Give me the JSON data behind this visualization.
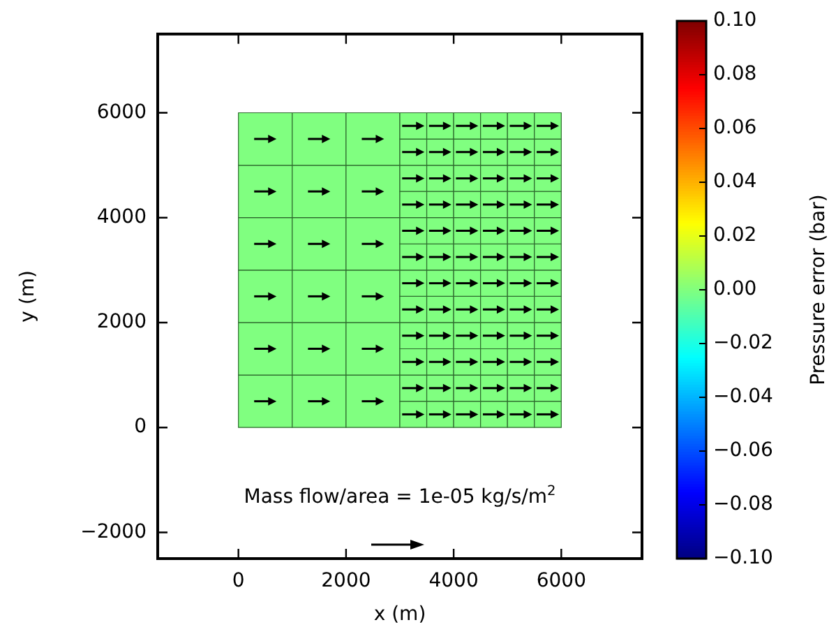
{
  "chart_data": {
    "type": "scatter",
    "xlabel": "x (m)",
    "ylabel": "y (m)",
    "clabel": "Pressure error (bar)",
    "annotations": [
      "Mass flow/area = 1e-05 kg/s/m$^{2}$"
    ],
    "x": [
      500,
      1500,
      2500,
      500,
      1500,
      2500,
      500,
      1500,
      2500,
      500,
      1500,
      2500,
      500,
      1500,
      2500,
      500,
      1500,
      2500,
      3250,
      3750,
      4250,
      4750,
      5250,
      5750,
      3250,
      3750,
      4250,
      4750,
      5250,
      5750,
      3250,
      3750,
      4250,
      4750,
      5250,
      5750,
      3250,
      3750,
      4250,
      4750,
      5250,
      5750,
      3250,
      3750,
      4250,
      4750,
      5250,
      5750,
      3250,
      3750,
      4250,
      4750,
      5250,
      5750,
      3250,
      3750,
      4250,
      4750,
      5250,
      5750,
      3250,
      3750,
      4250,
      4750,
      5250,
      5750,
      3250,
      3750,
      4250,
      4750,
      5250,
      5750,
      3250,
      3750,
      4250,
      4750,
      5250,
      5750,
      3250,
      3750,
      4250,
      4750,
      5250,
      5750,
      3250,
      3750,
      4250,
      4750,
      5250,
      5750
    ],
    "values": [
      500,
      500,
      500,
      1500,
      1500,
      1500,
      2500,
      2500,
      2500,
      3500,
      3500,
      3500,
      4500,
      4500,
      4500,
      5500,
      5500,
      5500,
      250,
      250,
      250,
      250,
      250,
      250,
      750,
      750,
      750,
      750,
      750,
      750,
      1250,
      1250,
      1250,
      1250,
      1250,
      1250,
      1750,
      1750,
      1750,
      1750,
      1750,
      1750,
      2250,
      2250,
      2250,
      2250,
      2250,
      2250,
      2750,
      2750,
      2750,
      2750,
      2750,
      2750,
      3250,
      3250,
      3250,
      3250,
      3250,
      3250,
      3750,
      3750,
      3750,
      3750,
      3750,
      3750,
      4250,
      4250,
      4250,
      4250,
      4250,
      4250,
      4750,
      4750,
      4750,
      4750,
      4750,
      4750,
      5250,
      5250,
      5250,
      5250,
      5250,
      5250,
      5750,
      5750,
      5750,
      5750,
      5750,
      5750
    ],
    "sizes": [
      1,
      1,
      1,
      1,
      1,
      1,
      1,
      1,
      1,
      1,
      1,
      1,
      1,
      1,
      1,
      1,
      1,
      1,
      0.25,
      0.25,
      0.25,
      0.25,
      0.25,
      0.25,
      0.25,
      0.25,
      0.25,
      0.25,
      0.25,
      0.25,
      0.25,
      0.25,
      0.25,
      0.25,
      0.25,
      0.25,
      0.25,
      0.25,
      0.25,
      0.25,
      0.25,
      0.25,
      0.25,
      0.25,
      0.25,
      0.25,
      0.25,
      0.25,
      0.25,
      0.25,
      0.25,
      0.25,
      0.25,
      0.25,
      0.25,
      0.25,
      0.25,
      0.25,
      0.25,
      0.25,
      0.25,
      0.25,
      0.25,
      0.25,
      0.25,
      0.25,
      0.25,
      0.25,
      0.25,
      0.25,
      0.25,
      0.25,
      0.25,
      0.25,
      0.25,
      0.25,
      0.25,
      0.25,
      0.25,
      0.25,
      0.25,
      0.25,
      0.25,
      0.25,
      0.25,
      0.25,
      0.25,
      0.25,
      0.25,
      0.25
    ],
    "cvalues": [
      0,
      0,
      0,
      0,
      0,
      0,
      0,
      0,
      0,
      0,
      0,
      0,
      0,
      0,
      0,
      0,
      0,
      0,
      0,
      0,
      0,
      0,
      0,
      0,
      0,
      0,
      0,
      0,
      0,
      0,
      0,
      0,
      0,
      0,
      0,
      0,
      0,
      0,
      0,
      0,
      0,
      0,
      0,
      0,
      0,
      0,
      0,
      0,
      0,
      0,
      0,
      0,
      0,
      0,
      0,
      0,
      0,
      0,
      0,
      0,
      0,
      0,
      0,
      0,
      0,
      0,
      0,
      0,
      0,
      0,
      0,
      0,
      0,
      0,
      0,
      0,
      0,
      0,
      0,
      0,
      0,
      0,
      0,
      0,
      0,
      0,
      0,
      0,
      0,
      0
    ],
    "xlim": [
      -1500,
      7500
    ],
    "xticks": [
      0,
      2000,
      4000,
      6000
    ],
    "ylim": [
      -2500,
      7500
    ],
    "yticks": [
      {
        "value": -2000,
        "label": "−2000"
      },
      0,
      2000,
      4000,
      6000
    ],
    "clim": [
      -0.1,
      0.1
    ],
    "cticks": [
      {
        "value": -0.1,
        "label": "−0.10"
      },
      {
        "value": -0.08,
        "label": "−0.08"
      },
      {
        "value": -0.06,
        "label": "−0.06"
      },
      {
        "value": -0.04,
        "label": "−0.04"
      },
      {
        "value": -0.02,
        "label": "−0.02"
      },
      {
        "value": 0,
        "label": "0.00"
      },
      {
        "value": 0.02,
        "label": "0.02"
      },
      {
        "value": 0.04,
        "label": "0.04"
      },
      {
        "value": 0.06,
        "label": "0.06"
      },
      {
        "value": 0.08,
        "label": "0.08"
      },
      {
        "value": 0.1,
        "label": "0.10"
      }
    ],
    "grid": false,
    "legend": false
  }
}
